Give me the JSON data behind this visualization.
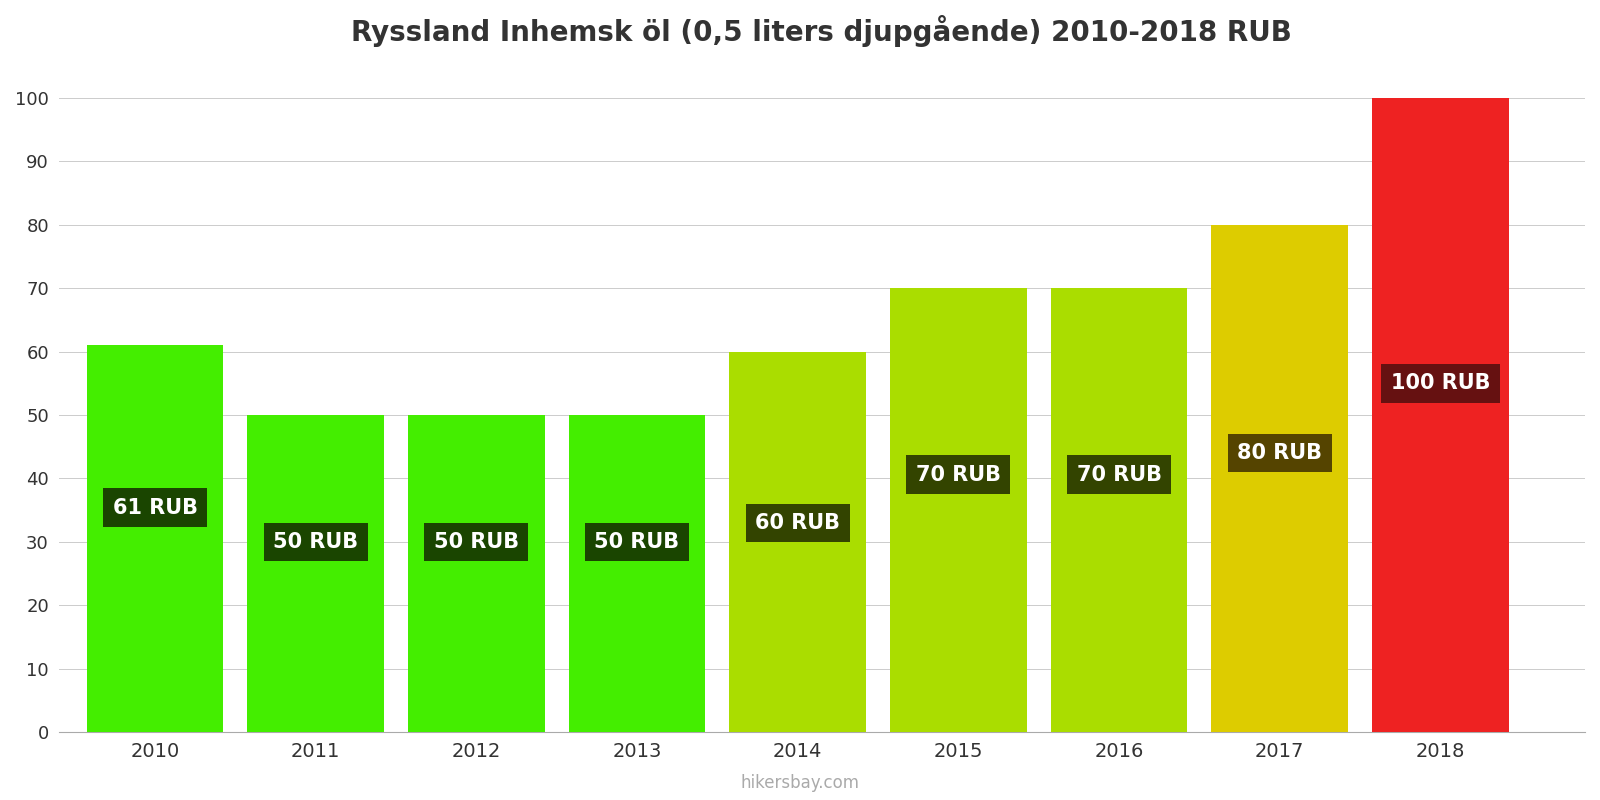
{
  "years": [
    2010,
    2011,
    2012,
    2013,
    2014,
    2015,
    2016,
    2017,
    2018
  ],
  "values": [
    61,
    50,
    50,
    50,
    60,
    70,
    70,
    80,
    100
  ],
  "bar_colors": [
    "#44ee00",
    "#44ee00",
    "#44ee00",
    "#44ee00",
    "#aadd00",
    "#aadd00",
    "#aadd00",
    "#ddcc00",
    "#ee2222"
  ],
  "label_bg_colors": [
    "#1a4500",
    "#1a4500",
    "#1a4500",
    "#1a4500",
    "#334400",
    "#334400",
    "#334400",
    "#554400",
    "#661111"
  ],
  "labels": [
    "61 RUB",
    "50 RUB",
    "50 RUB",
    "50 RUB",
    "60 RUB",
    "70 RUB",
    "70 RUB",
    "80 RUB",
    "100 RUB"
  ],
  "label_y_fractions": [
    0.58,
    0.6,
    0.6,
    0.6,
    0.55,
    0.58,
    0.58,
    0.55,
    0.55
  ],
  "title": "Ryssland Inhemsk öl (0,5 liters djupgående) 2010-2018 RUB",
  "ylim": [
    0,
    105
  ],
  "yticks": [
    0,
    10,
    20,
    30,
    40,
    50,
    60,
    70,
    80,
    90,
    100
  ],
  "watermark": "hikersbay.com",
  "background_color": "#ffffff",
  "title_fontsize": 20,
  "label_fontsize": 15,
  "bar_width": 0.85
}
